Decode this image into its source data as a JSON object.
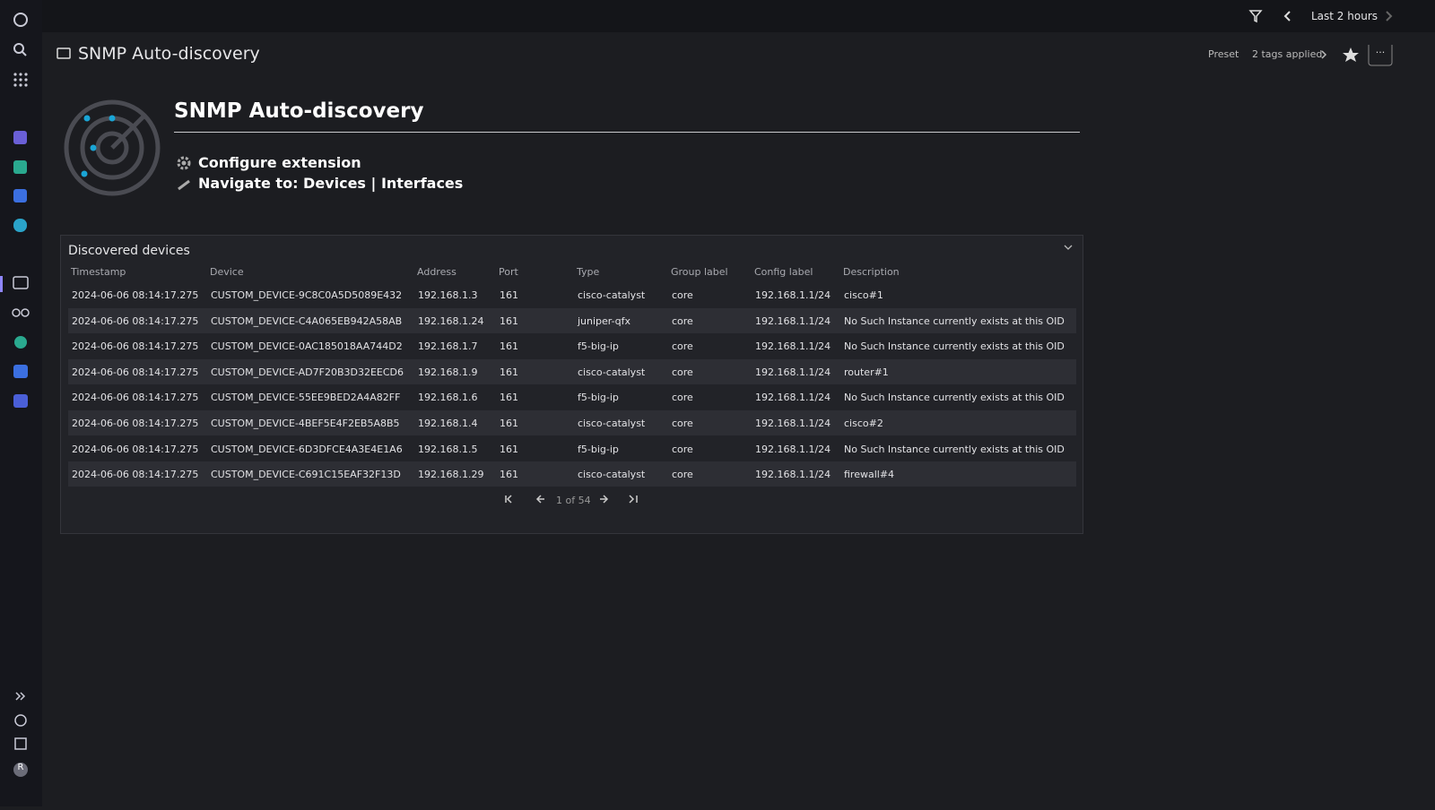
{
  "topbar": {
    "timeframe": "Last 2 hours"
  },
  "header": {
    "title": "SNMP Auto-discovery",
    "preset": "Preset",
    "tags": "2 tags applied"
  },
  "intro": {
    "title": "SNMP Auto-discovery",
    "configure": "Configure extension",
    "navigate_label": "Navigate to:",
    "links": [
      "Devices",
      "Interfaces"
    ],
    "separator": "|"
  },
  "table": {
    "title": "Discovered devices",
    "columns": [
      "Timestamp",
      "Device",
      "Address",
      "Port",
      "Type",
      "Group label",
      "Config label",
      "Description"
    ],
    "rows": [
      [
        "2024-06-06 08:14:17.275",
        "CUSTOM_DEVICE-9C8C0A5D5089E432",
        "192.168.1.3",
        "161",
        "cisco-catalyst",
        "core",
        "192.168.1.1/24",
        "cisco#1"
      ],
      [
        "2024-06-06 08:14:17.275",
        "CUSTOM_DEVICE-C4A065EB942A58AB",
        "192.168.1.24",
        "161",
        "juniper-qfx",
        "core",
        "192.168.1.1/24",
        "No Such Instance currently exists at this OID"
      ],
      [
        "2024-06-06 08:14:17.275",
        "CUSTOM_DEVICE-0AC185018AA744D2",
        "192.168.1.7",
        "161",
        "f5-big-ip",
        "core",
        "192.168.1.1/24",
        "No Such Instance currently exists at this OID"
      ],
      [
        "2024-06-06 08:14:17.275",
        "CUSTOM_DEVICE-AD7F20B3D32EECD6",
        "192.168.1.9",
        "161",
        "cisco-catalyst",
        "core",
        "192.168.1.1/24",
        "router#1"
      ],
      [
        "2024-06-06 08:14:17.275",
        "CUSTOM_DEVICE-55EE9BED2A4A82FF",
        "192.168.1.6",
        "161",
        "f5-big-ip",
        "core",
        "192.168.1.1/24",
        "No Such Instance currently exists at this OID"
      ],
      [
        "2024-06-06 08:14:17.275",
        "CUSTOM_DEVICE-4BEF5E4F2EB5A8B5",
        "192.168.1.4",
        "161",
        "cisco-catalyst",
        "core",
        "192.168.1.1/24",
        "cisco#2"
      ],
      [
        "2024-06-06 08:14:17.275",
        "CUSTOM_DEVICE-6D3DFCE4A3E4E1A6",
        "192.168.1.5",
        "161",
        "f5-big-ip",
        "core",
        "192.168.1.1/24",
        "No Such Instance currently exists at this OID"
      ],
      [
        "2024-06-06 08:14:17.275",
        "CUSTOM_DEVICE-C691C15EAF32F13D",
        "192.168.1.29",
        "161",
        "cisco-catalyst",
        "core",
        "192.168.1.1/24",
        "firewall#4"
      ]
    ]
  },
  "pagination": {
    "label": "1 of 54"
  },
  "sidebar": {
    "user_initial": "R"
  }
}
